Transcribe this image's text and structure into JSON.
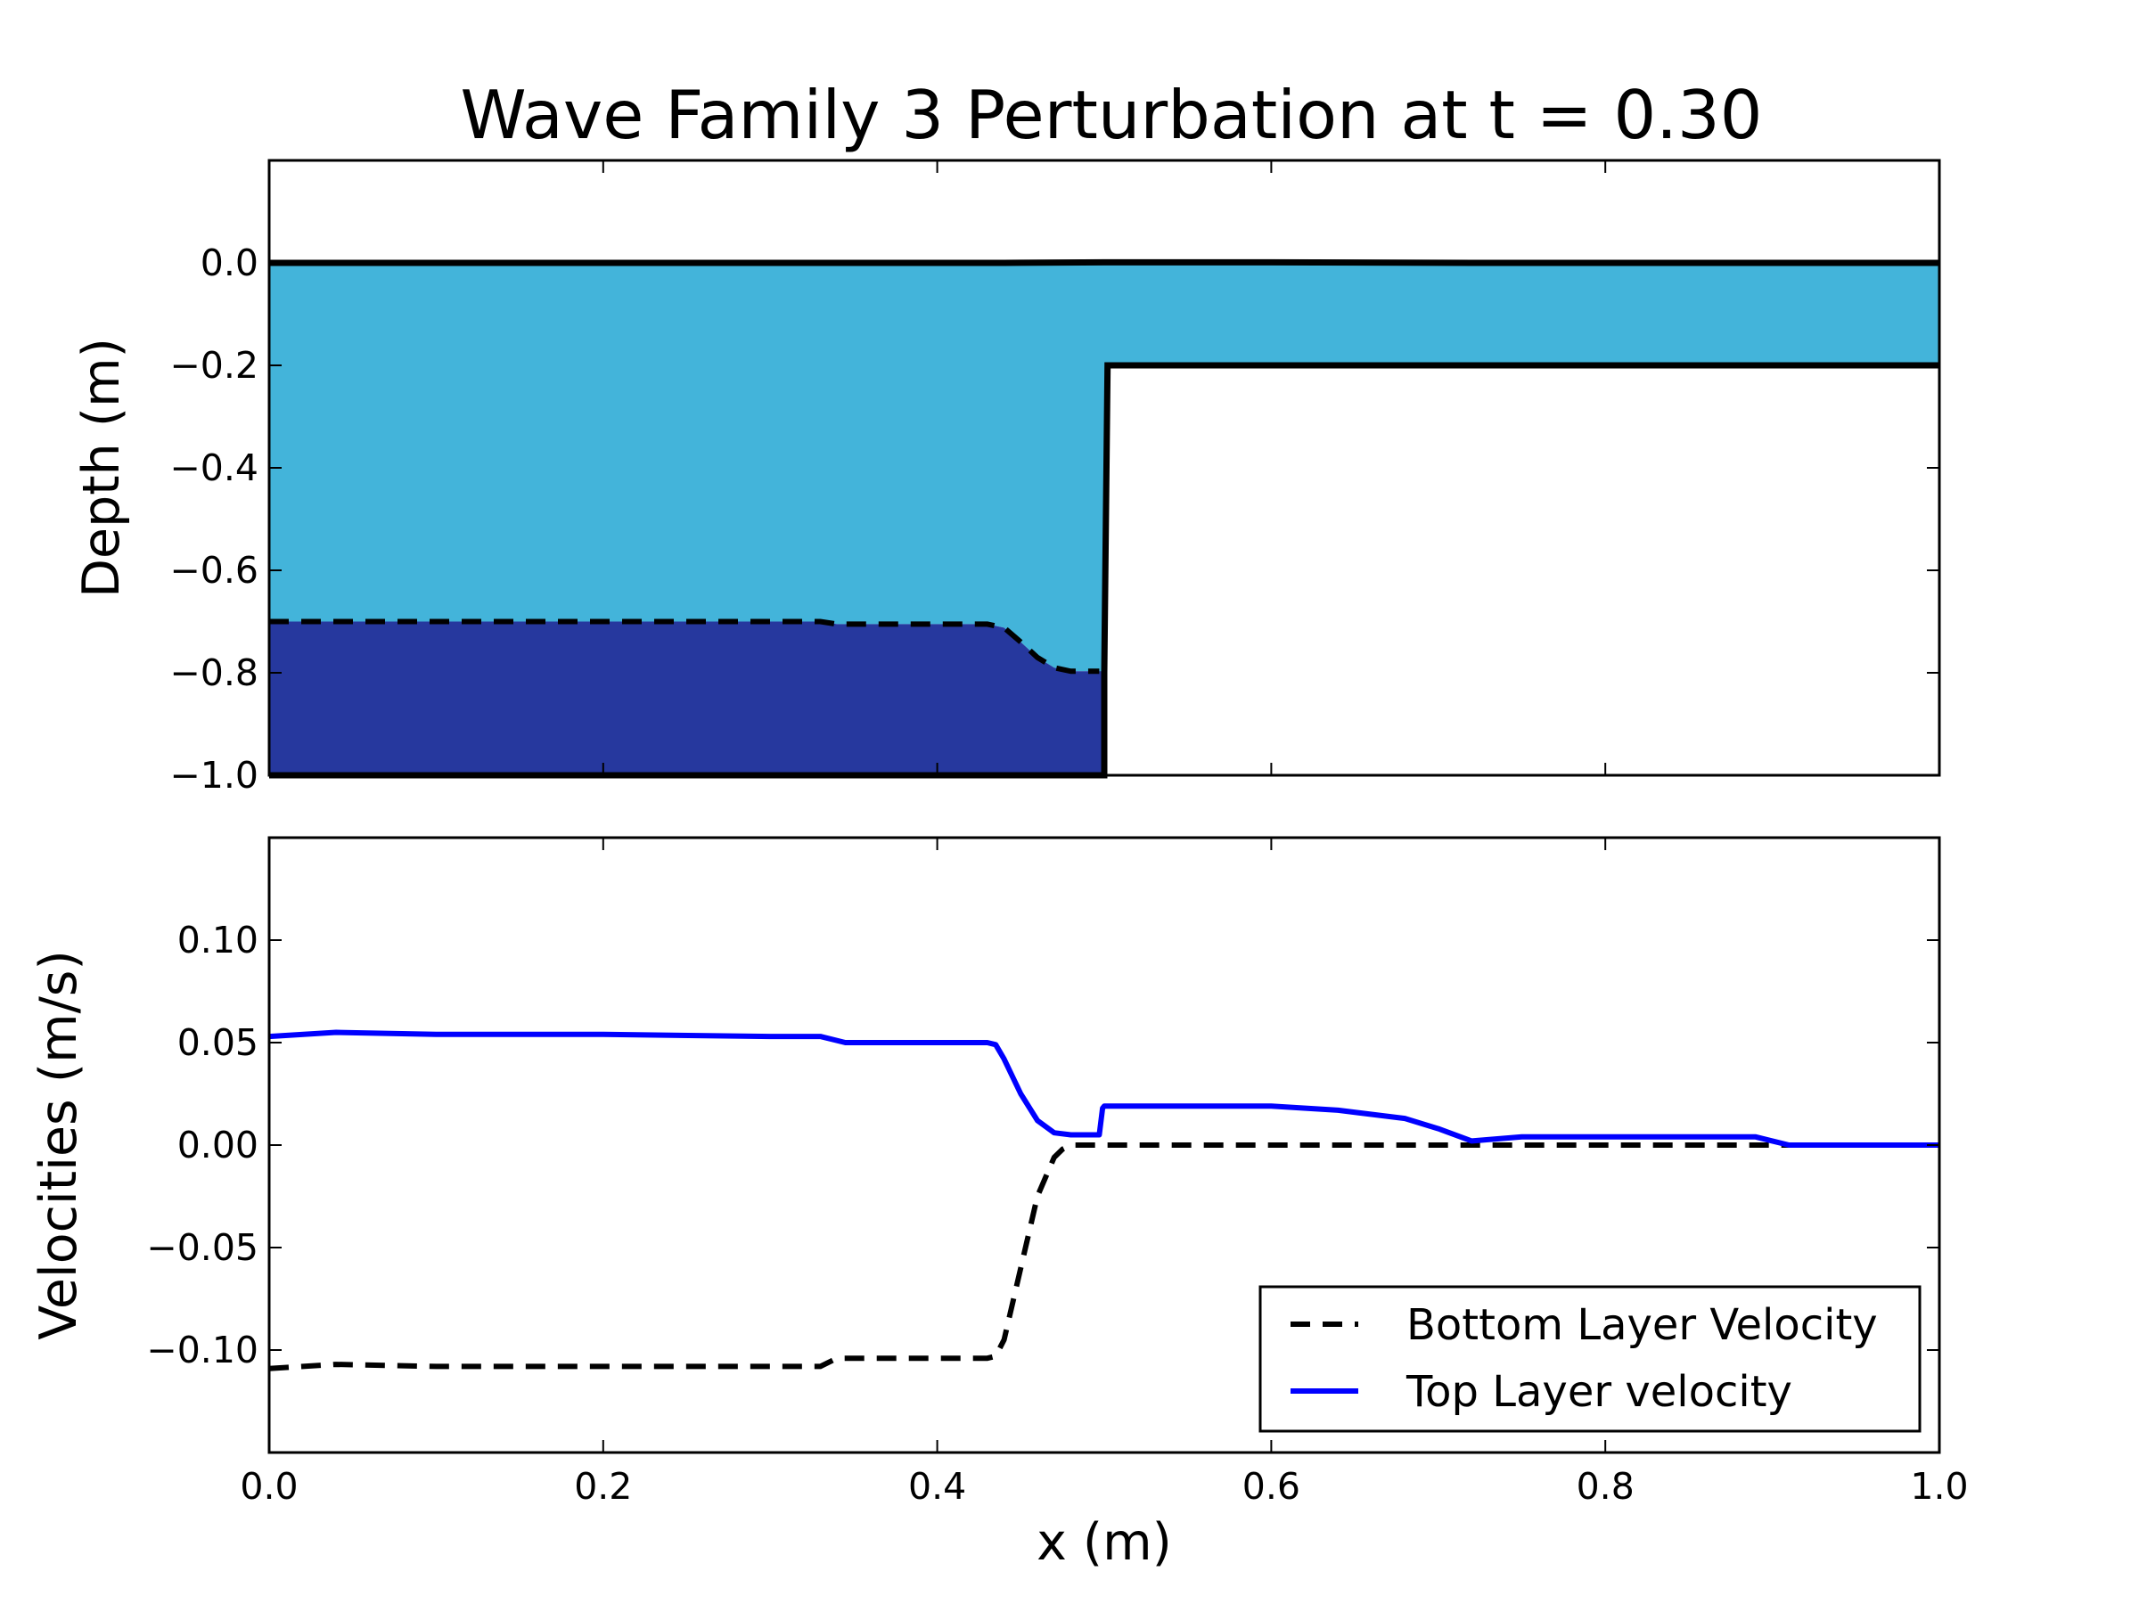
{
  "colors": {
    "top_fill": "#43b4da",
    "bottom_fill": "#26389e",
    "surface_line": "#000000",
    "interface_line": "#000000",
    "top_velocity_line": "#0000ff",
    "bottom_velocity_line": "#000000"
  },
  "chart_data": [
    {
      "type": "area",
      "title": "Wave Family 3 Perturbation at t = 0.30",
      "xlabel": "",
      "ylabel": "Depth (m)",
      "xlim": [
        0.0,
        1.0
      ],
      "ylim": [
        -1.0,
        0.2
      ],
      "xticks": [
        0.0,
        0.2,
        0.4,
        0.6,
        0.8,
        1.0
      ],
      "yticks": [
        0.0,
        -0.2,
        -0.4,
        -0.6,
        -0.8,
        -1.0
      ],
      "ytick_labels": [
        "0.0",
        "−0.2",
        "−0.4",
        "−0.6",
        "−0.8",
        "−1.0"
      ],
      "show_xtick_labels": false,
      "grid": false,
      "series": [
        {
          "role": "surface",
          "style": "solid",
          "x": [
            0.0,
            0.2,
            0.44,
            0.5,
            0.6,
            0.72,
            0.9,
            1.0
          ],
          "y": [
            0.0,
            0.0,
            0.0,
            0.001,
            0.001,
            0.0,
            0.0,
            0.0
          ]
        },
        {
          "role": "interface",
          "style": "dashed",
          "x": [
            0.0,
            0.33,
            0.34,
            0.43,
            0.44,
            0.45,
            0.46,
            0.47,
            0.48,
            0.497
          ],
          "y": [
            -0.7,
            -0.7,
            -0.705,
            -0.705,
            -0.712,
            -0.74,
            -0.77,
            -0.79,
            -0.797,
            -0.797
          ]
        },
        {
          "role": "bathymetry",
          "style": "solid",
          "x": [
            0.0,
            0.5,
            0.5,
            0.502,
            1.0
          ],
          "y": [
            -1.0,
            -1.0,
            -0.8,
            -0.2,
            -0.2
          ]
        }
      ]
    },
    {
      "type": "line",
      "title": "",
      "xlabel": "x (m)",
      "ylabel": "Velocities (m/s)",
      "xlim": [
        0.0,
        1.0
      ],
      "ylim": [
        -0.15,
        0.15
      ],
      "xticks": [
        0.0,
        0.2,
        0.4,
        0.6,
        0.8,
        1.0
      ],
      "xtick_labels": [
        "0.0",
        "0.2",
        "0.4",
        "0.6",
        "0.8",
        "1.0"
      ],
      "yticks": [
        0.1,
        0.05,
        0.0,
        -0.05,
        -0.1
      ],
      "ytick_labels": [
        "0.10",
        "0.05",
        "0.00",
        "−0.05",
        "−0.10"
      ],
      "grid": false,
      "legend_position": "lower-right",
      "series": [
        {
          "name": "Bottom Layer Velocity",
          "style": "dashed",
          "x": [
            0.0,
            0.04,
            0.1,
            0.2,
            0.3,
            0.33,
            0.34,
            0.43,
            0.435,
            0.44,
            0.45,
            0.46,
            0.47,
            0.475,
            0.48,
            0.5,
            0.6,
            0.7,
            0.8,
            0.9,
            1.0
          ],
          "y": [
            -0.109,
            -0.107,
            -0.108,
            -0.108,
            -0.108,
            -0.108,
            -0.104,
            -0.104,
            -0.103,
            -0.095,
            -0.06,
            -0.025,
            -0.006,
            -0.002,
            0.0,
            0.0,
            0.0,
            0.0,
            0.0,
            0.0,
            0.0
          ]
        },
        {
          "name": "Top Layer velocity",
          "style": "solid",
          "x": [
            0.0,
            0.04,
            0.1,
            0.2,
            0.3,
            0.33,
            0.345,
            0.4,
            0.43,
            0.435,
            0.44,
            0.45,
            0.46,
            0.47,
            0.48,
            0.497,
            0.499,
            0.5,
            0.6,
            0.64,
            0.68,
            0.7,
            0.72,
            0.75,
            0.8,
            0.89,
            0.9,
            0.91,
            1.0
          ],
          "y": [
            0.053,
            0.055,
            0.054,
            0.054,
            0.053,
            0.053,
            0.05,
            0.05,
            0.05,
            0.049,
            0.042,
            0.025,
            0.012,
            0.006,
            0.005,
            0.005,
            0.018,
            0.019,
            0.019,
            0.017,
            0.013,
            0.008,
            0.002,
            0.004,
            0.004,
            0.004,
            0.002,
            0.0,
            0.0
          ]
        }
      ]
    }
  ]
}
